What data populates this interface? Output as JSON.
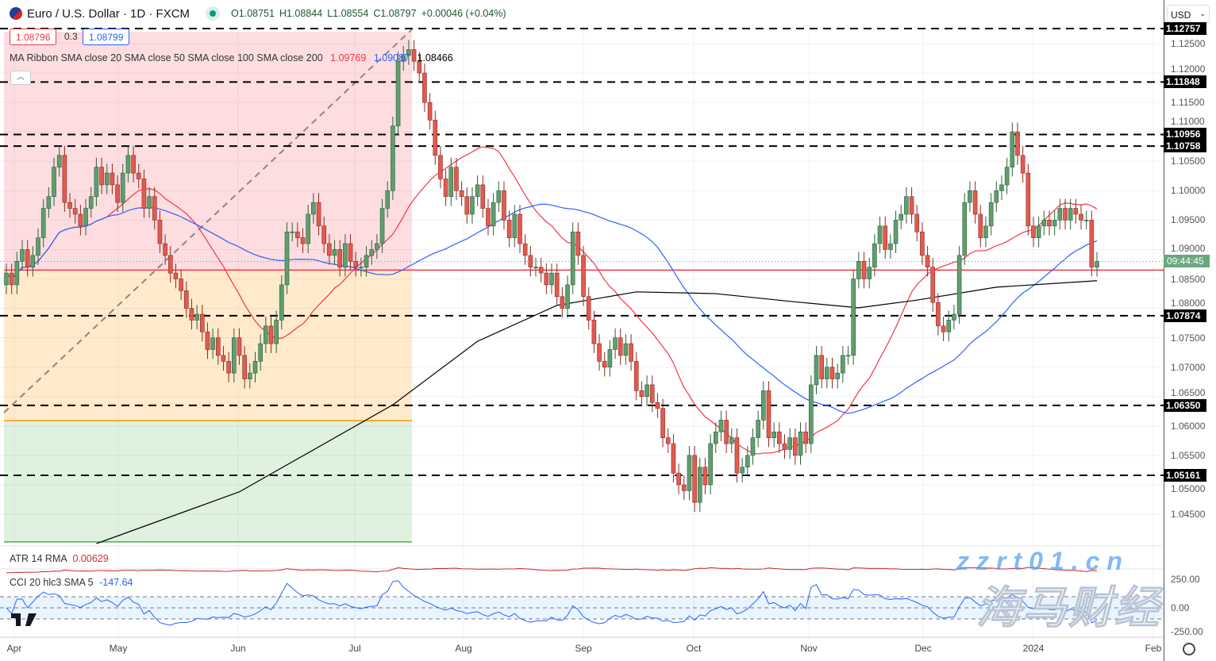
{
  "header": {
    "symbol": "Euro / U.S. Dollar · 1D · FXCM",
    "open": "O1.08751",
    "high": "H1.08844",
    "low": "L1.08554",
    "close": "C1.08797",
    "change": "+0.00046 (+0.04%)"
  },
  "trade": {
    "sell": "1.08796",
    "spread": "0.3",
    "buy": "1.08799"
  },
  "legend": {
    "label": "MA Ribbon SMA close 20 SMA close 50 SMA close 100 SMA close 200",
    "v1": "1.09769",
    "v2": "1.09087",
    "v3": "1.08466"
  },
  "atr": {
    "label": "ATR 14 RMA",
    "value": "0.00629"
  },
  "cci": {
    "label": "CCI 20 hlc3 SMA 5",
    "value": "-147.64",
    "ticks": [
      "250.00",
      "0.00",
      "-250.00"
    ]
  },
  "currency": "USD",
  "countdown": "09:44:45",
  "levels": [
    "1.12757",
    "1.11848",
    "1.10956",
    "1.10758",
    "1.07874",
    "1.06350",
    "1.05161"
  ],
  "price_ticks": [
    "1.12500",
    "1.12000",
    "1.11500",
    "1.11000",
    "1.10500",
    "1.10000",
    "1.09500",
    "1.09000",
    "1.08500",
    "1.08000",
    "1.07500",
    "1.07000",
    "1.06500",
    "1.06000",
    "1.05500",
    "1.05000",
    "1.04500"
  ],
  "time_labels": [
    "Apr",
    "May",
    "Jun",
    "Jul",
    "Aug",
    "Sep",
    "Oct",
    "Nov",
    "Dec",
    "2024",
    "Feb"
  ],
  "watermark": {
    "cn": "海马财经",
    "url": "zzrt01.cn"
  },
  "colors": {
    "up": "#5f9e6e",
    "down": "#e35a50",
    "sma20": "#f23645",
    "sma50": "#2962ff",
    "sma200": "#000000"
  },
  "chart_data": {
    "type": "candlestick",
    "closes": [
      1.086,
      1.084,
      1.088,
      1.09,
      1.087,
      1.089,
      1.092,
      1.097,
      1.099,
      1.104,
      1.106,
      1.098,
      1.097,
      1.096,
      1.094,
      1.097,
      1.099,
      1.104,
      1.101,
      1.103,
      1.101,
      1.098,
      1.103,
      1.106,
      1.103,
      1.102,
      1.097,
      1.099,
      1.095,
      1.091,
      1.089,
      1.086,
      1.085,
      1.083,
      1.08,
      1.078,
      1.079,
      1.076,
      1.073,
      1.075,
      1.072,
      1.071,
      1.069,
      1.075,
      1.072,
      1.068,
      1.069,
      1.071,
      1.074,
      1.077,
      1.074,
      1.078,
      1.084,
      1.093,
      1.093,
      1.092,
      1.091,
      1.096,
      1.098,
      1.094,
      1.091,
      1.089,
      1.09,
      1.087,
      1.091,
      1.088,
      1.087,
      1.087,
      1.089,
      1.09,
      1.091,
      1.097,
      1.1,
      1.111,
      1.122,
      1.123,
      1.124,
      1.122,
      1.12,
      1.115,
      1.112,
      1.106,
      1.102,
      1.099,
      1.104,
      1.1,
      1.099,
      1.096,
      1.099,
      1.101,
      1.097,
      1.094,
      1.098,
      1.1,
      1.095,
      1.092,
      1.096,
      1.091,
      1.089,
      1.087,
      1.087,
      1.086,
      1.084,
      1.086,
      1.082,
      1.08,
      1.084,
      1.093,
      1.089,
      1.082,
      1.078,
      1.074,
      1.071,
      1.07,
      1.073,
      1.075,
      1.072,
      1.074,
      1.071,
      1.066,
      1.065,
      1.067,
      1.064,
      1.063,
      1.058,
      1.057,
      1.052,
      1.05,
      1.049,
      1.055,
      1.047,
      1.053,
      1.05,
      1.057,
      1.059,
      1.061,
      1.057,
      1.058,
      1.052,
      1.053,
      1.055,
      1.058,
      1.061,
      1.066,
      1.058,
      1.059,
      1.057,
      1.056,
      1.058,
      1.055,
      1.059,
      1.057,
      1.067,
      1.072,
      1.068,
      1.07,
      1.068,
      1.069,
      1.072,
      1.072,
      1.085,
      1.088,
      1.085,
      1.087,
      1.091,
      1.094,
      1.09,
      1.091,
      1.095,
      1.096,
      1.099,
      1.096,
      1.093,
      1.089,
      1.087,
      1.081,
      1.077,
      1.076,
      1.078,
      1.079,
      1.089,
      1.098,
      1.1,
      1.096,
      1.092,
      1.094,
      1.098,
      1.1,
      1.101,
      1.104,
      1.11,
      1.106,
      1.103,
      1.094,
      1.092,
      1.094,
      1.095,
      1.094,
      1.095,
      1.097,
      1.095,
      1.097,
      1.096,
      1.095,
      1.095,
      1.087,
      1.08797
    ],
    "sma200": [
      [
        17,
        1.04
      ],
      [
        44,
        1.0488
      ],
      [
        73,
        1.0636
      ],
      [
        89,
        1.0744
      ],
      [
        104,
        1.0805
      ],
      [
        119,
        1.0828
      ],
      [
        134,
        1.0825
      ],
      [
        149,
        1.0811
      ],
      [
        161,
        1.0801
      ],
      [
        172,
        1.0814
      ],
      [
        187,
        1.0836
      ],
      [
        206,
        1.0847
      ]
    ],
    "ylim": [
      1.04,
      1.1295
    ],
    "position_tool": {
      "top": 1.127,
      "entry": 1.0865,
      "stop_band": 1.0609,
      "bottom": 1.0403
    }
  }
}
